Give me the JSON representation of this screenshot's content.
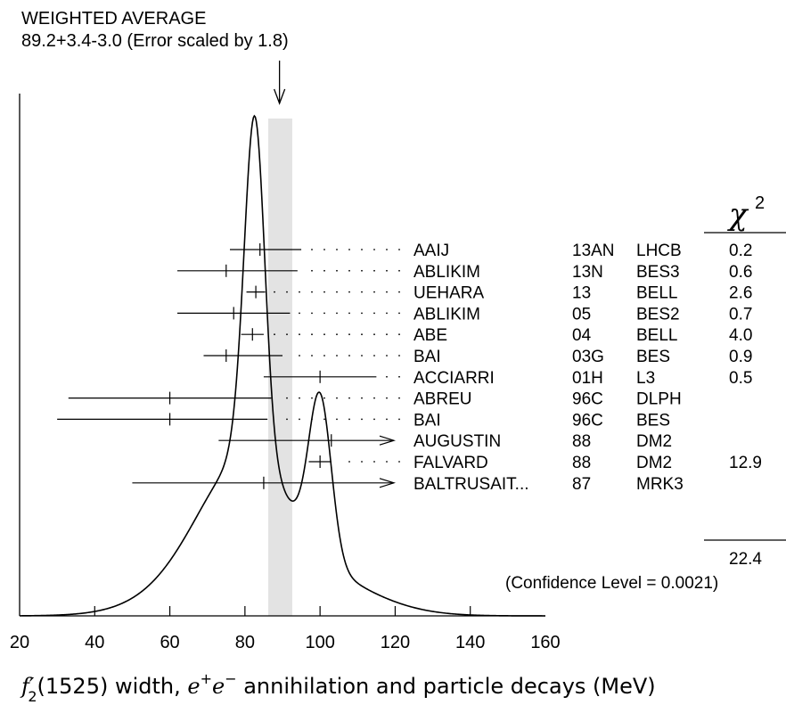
{
  "chart_data": {
    "type": "ideogram",
    "weighted_average": {
      "title": "WEIGHTED AVERAGE",
      "subtitle": "89.2+3.4-3.0 (Error scaled by 1.8)",
      "value": 89.2,
      "err_plus": 3.4,
      "err_minus": 3.0
    },
    "xlabel": {
      "particle": "f",
      "prime": "′",
      "sub": "2",
      "mass": "(1525) width, ",
      "e1": "e",
      "e1_sup": "+",
      "e2": "e",
      "e2_sup": "−",
      "rest": " annihilation and particle decays (MeV)"
    },
    "xlim": [
      20,
      160
    ],
    "xticks": [
      20,
      40,
      60,
      80,
      100,
      120,
      140,
      160
    ],
    "chi2_header": {
      "symbol": "χ",
      "power": "2"
    },
    "chi2_total": "22.4",
    "confidence_text": "(Confidence Level = 0.0021)",
    "measurements": [
      {
        "author": "AAIJ",
        "year": "13AN",
        "experiment": "LHCB",
        "chi2": "0.2",
        "value": 84,
        "err_minus": 8,
        "err_plus": 11,
        "type": "bar"
      },
      {
        "author": "ABLIKIM",
        "year": "13N",
        "experiment": "BES3",
        "chi2": "0.6",
        "value": 75,
        "err_minus": 13,
        "err_plus": 19,
        "type": "bar"
      },
      {
        "author": "UEHARA",
        "year": "13",
        "experiment": "BELL",
        "chi2": "2.6",
        "value": 82.9,
        "err_minus": 2.5,
        "err_plus": 2.5,
        "type": "bar"
      },
      {
        "author": "ABLIKIM",
        "year": "05",
        "experiment": "BES2",
        "chi2": "0.7",
        "value": 77,
        "err_minus": 15,
        "err_plus": 15,
        "type": "bar"
      },
      {
        "author": "ABE",
        "year": "04",
        "experiment": "BELL",
        "chi2": "4.0",
        "value": 82,
        "err_minus": 3,
        "err_plus": 3,
        "type": "bar"
      },
      {
        "author": "BAI",
        "year": "03G",
        "experiment": "BES",
        "chi2": "0.9",
        "value": 75,
        "err_minus": 6,
        "err_plus": 15,
        "type": "bar"
      },
      {
        "author": "ACCIARRI",
        "year": "01H",
        "experiment": "L3",
        "chi2": "0.5",
        "value": 100,
        "err_minus": 15,
        "err_plus": 15,
        "type": "bar"
      },
      {
        "author": "ABREU",
        "year": "96C",
        "experiment": "DLPH",
        "chi2": "",
        "value": 60,
        "err_minus": 27,
        "err_plus": 27,
        "type": "bar"
      },
      {
        "author": "BAI",
        "year": "96C",
        "experiment": "BES",
        "chi2": "",
        "value": 60,
        "err_minus": 30,
        "err_plus": 26,
        "type": "bar"
      },
      {
        "author": "AUGUSTIN",
        "year": "88",
        "experiment": "DM2",
        "chi2": "",
        "value": 103,
        "err_minus": 30,
        "err_plus": 30,
        "type": "arrow"
      },
      {
        "author": "FALVARD",
        "year": "88",
        "experiment": "DM2",
        "chi2": "12.9",
        "value": 100,
        "err_minus": 3,
        "err_plus": 3,
        "type": "bar"
      },
      {
        "author": "BALTRUSAIT...",
        "year": "87",
        "experiment": "MRK3",
        "chi2": "",
        "value": 85,
        "err_minus": 35,
        "err_plus": 35,
        "type": "arrow"
      }
    ]
  }
}
